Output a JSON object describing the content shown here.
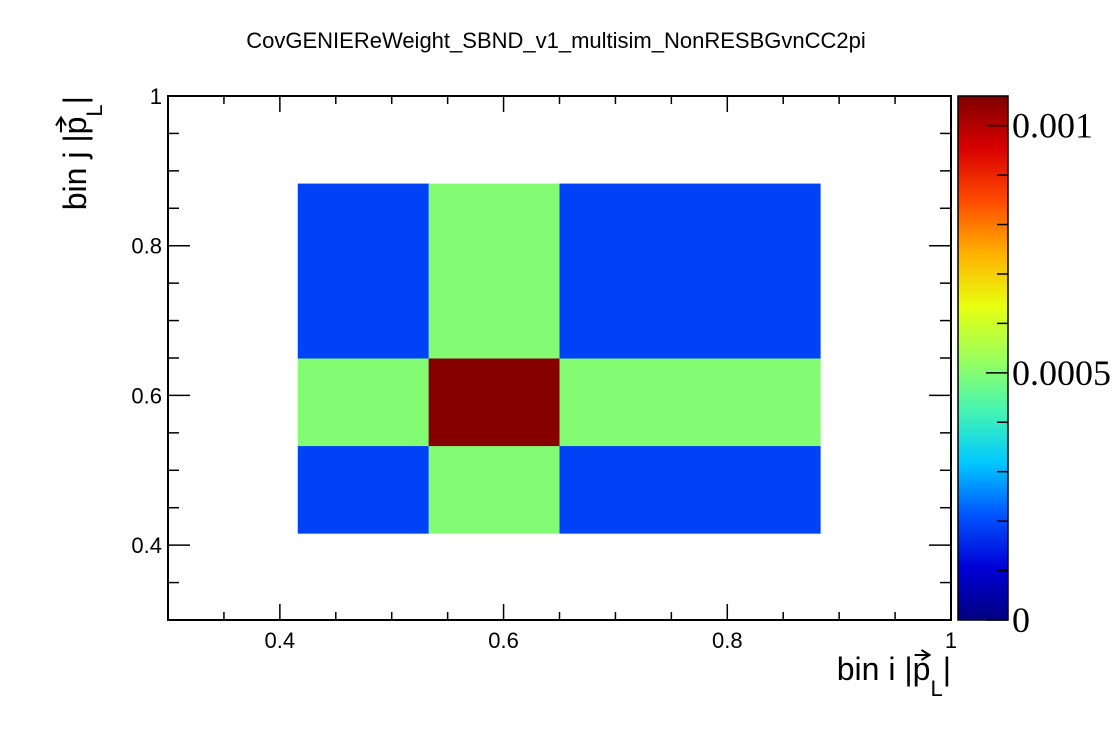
{
  "chart_data": {
    "type": "heatmap",
    "title": "CovGENIEReWeight_SBND_v1_multisim_NonRESBGvnCC2pi",
    "xlabel": "bin i |p⃗_L|",
    "ylabel": "bin j |p⃗_L|",
    "xlabel_parts": {
      "pre": "bin i |",
      "p": "p",
      "sub": "L",
      "post": "|"
    },
    "ylabel_parts": {
      "pre": "bin j |",
      "p": "p",
      "sub": "L",
      "post": "|"
    },
    "xlim": [
      0.3,
      1.0
    ],
    "ylim": [
      0.3,
      1.0
    ],
    "x_ticks": [
      {
        "value": 0.4,
        "label": "0.4"
      },
      {
        "value": 0.6,
        "label": "0.6"
      },
      {
        "value": 0.8,
        "label": "0.8"
      },
      {
        "value": 1.0,
        "label": "1"
      }
    ],
    "y_ticks": [
      {
        "value": 0.4,
        "label": "0.4"
      },
      {
        "value": 0.6,
        "label": "0.6"
      },
      {
        "value": 0.8,
        "label": "0.8"
      },
      {
        "value": 1.0,
        "label": "1"
      }
    ],
    "x_edges": [
      0.416,
      0.533,
      0.65,
      0.883
    ],
    "y_edges": [
      0.416,
      0.533,
      0.65,
      0.883
    ],
    "z": [
      [
        0.00019,
        0.0005,
        0.00019
      ],
      [
        0.0005,
        0.00105,
        0.0005
      ],
      [
        0.00019,
        0.0005,
        0.00019
      ]
    ],
    "zlim": [
      0,
      0.00106
    ],
    "z_ticks": [
      {
        "value": 0,
        "label": "0"
      },
      {
        "value": 0.0005,
        "label": "0.0005"
      },
      {
        "value": 0.001,
        "label": "0.001"
      }
    ],
    "colormap": [
      "#00007f",
      "#0000d6",
      "#0054ff",
      "#00c8ff",
      "#45f5b2",
      "#9cff5b",
      "#e8ff0f",
      "#ffb000",
      "#ff4a00",
      "#d90000",
      "#7f0000"
    ],
    "grid": false,
    "legend": "colorbar-right"
  }
}
